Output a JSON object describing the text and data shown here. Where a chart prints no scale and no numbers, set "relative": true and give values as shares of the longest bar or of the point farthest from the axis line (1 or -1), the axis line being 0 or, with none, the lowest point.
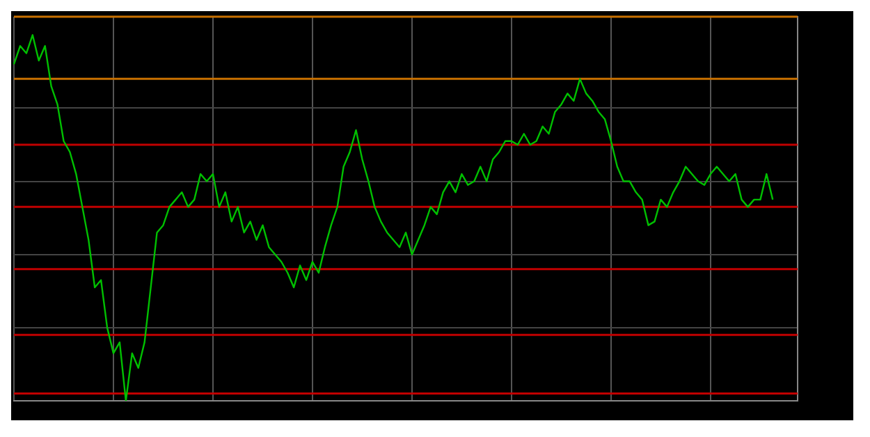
{
  "chart_data": {
    "type": "line",
    "relative": true,
    "grid": true,
    "legend": false,
    "marker": "none",
    "line_style": "solid",
    "categories": [
      null,
      null,
      null,
      null,
      null,
      null,
      null,
      null,
      null,
      null,
      null,
      null,
      null,
      null,
      null,
      null,
      null,
      null,
      null,
      null,
      null,
      null,
      null,
      null,
      null,
      null,
      null,
      null,
      null,
      null,
      null,
      null,
      null,
      null,
      null,
      null,
      null,
      null,
      null,
      null,
      null,
      null,
      null,
      null,
      null,
      null,
      null,
      null,
      null,
      null,
      null,
      null,
      null,
      null,
      null,
      null,
      null,
      null,
      null,
      null,
      null,
      null,
      null,
      null,
      null,
      null,
      null,
      null,
      null,
      null,
      null,
      null,
      null,
      null,
      null,
      null,
      null,
      null,
      null,
      null,
      null,
      null,
      null,
      null,
      null,
      null,
      null,
      null,
      null,
      null,
      null,
      null,
      null,
      null,
      null,
      null,
      null,
      null,
      null,
      null,
      null,
      null,
      null,
      null,
      null,
      null,
      null,
      null,
      null,
      null,
      null,
      null,
      null,
      null,
      null,
      null,
      null,
      null,
      null,
      null,
      null,
      null,
      null,
      null,
      null,
      null,
      null
    ],
    "series": [
      {
        "color": "#00c000",
        "values": [
          0.92,
          0.97,
          0.95,
          1,
          0.93,
          0.97,
          0.86,
          0.81,
          0.71,
          0.68,
          0.62,
          0.53,
          0.44,
          0.31,
          0.33,
          0.2,
          0.13,
          0.16,
          0,
          0.13,
          0.09,
          0.16,
          0.31,
          0.46,
          0.48,
          0.53,
          0.55,
          0.57,
          0.53,
          0.55,
          0.62,
          0.6,
          0.62,
          0.53,
          0.57,
          0.49,
          0.53,
          0.46,
          0.49,
          0.44,
          0.48,
          0.42,
          0.4,
          0.38,
          0.35,
          0.31,
          0.37,
          0.33,
          0.38,
          0.35,
          0.42,
          0.48,
          0.53,
          0.64,
          0.68,
          0.74,
          0.66,
          0.6,
          0.53,
          0.49,
          0.46,
          0.44,
          0.42,
          0.46,
          0.4,
          0.44,
          0.48,
          0.53,
          0.51,
          0.57,
          0.6,
          0.57,
          0.62,
          0.59,
          0.6,
          0.64,
          0.6,
          0.66,
          0.68,
          0.71,
          0.71,
          0.7,
          0.73,
          0.7,
          0.71,
          0.75,
          0.73,
          0.79,
          0.81,
          0.84,
          0.82,
          0.88,
          0.84,
          0.82,
          0.79,
          0.77,
          0.71,
          0.64,
          0.6,
          0.6,
          0.57,
          0.55,
          0.48,
          0.49,
          0.55,
          0.53,
          0.57,
          0.6,
          0.64,
          0.62,
          0.6,
          0.59,
          0.62,
          0.64,
          0.62,
          0.6,
          0.62,
          0.55,
          0.53,
          0.55,
          0.55,
          0.62,
          0.55,
          null,
          null,
          null,
          null
        ]
      }
    ],
    "ref_lines": [
      {
        "axis": "y",
        "value": 1.05,
        "color": "#c87000"
      },
      {
        "axis": "y",
        "value": 0.88,
        "color": "#c87000"
      },
      {
        "axis": "y",
        "value": 0.7,
        "color": "#c00000"
      },
      {
        "axis": "y",
        "value": 0.53,
        "color": "#c00000"
      },
      {
        "axis": "y",
        "value": 0.36,
        "color": "#c00000"
      },
      {
        "axis": "y",
        "value": 0.18,
        "color": "#c00000"
      },
      {
        "axis": "y",
        "value": 0.02,
        "color": "#c00000"
      }
    ]
  }
}
